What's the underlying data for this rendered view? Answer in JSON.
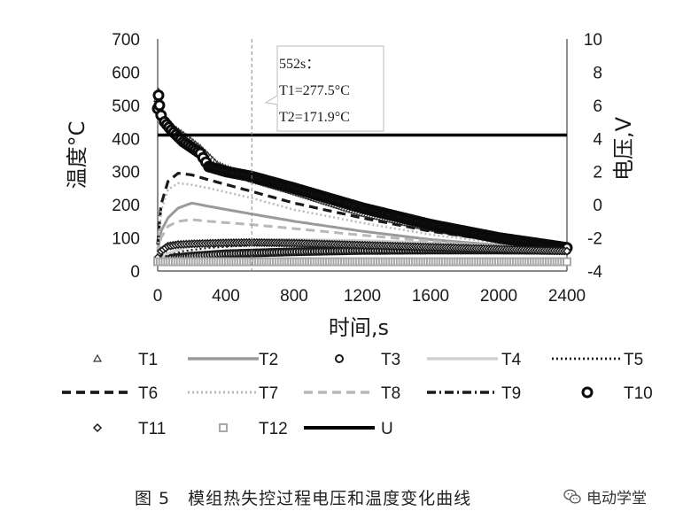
{
  "chart_data": {
    "type": "line",
    "title": "",
    "xlabel": "时间,s",
    "ylabel": "温度°C",
    "y2label": "电压,V",
    "xlim": [
      0,
      2400
    ],
    "ylim": [
      0,
      700
    ],
    "y2lim": [
      -4,
      10
    ],
    "xticks": [
      0,
      400,
      800,
      1200,
      1600,
      2000,
      2400
    ],
    "yticks": [
      0,
      100,
      200,
      300,
      400,
      500,
      600,
      700
    ],
    "y2ticks": [
      -4,
      -2,
      0,
      2,
      4,
      6,
      8,
      10
    ],
    "xtick_labels": [
      "0",
      "400",
      "800",
      "1200",
      "1600",
      "2000",
      "2400"
    ],
    "ytick_labels": [
      "0",
      "100",
      "200",
      "300",
      "400",
      "500",
      "600",
      "700"
    ],
    "y2tick_labels": [
      "-4",
      "-2",
      "0",
      "2",
      "4",
      "6",
      "8",
      "10"
    ],
    "annotation": {
      "x": 552,
      "line1": "552s：",
      "line2": "T1=277.5°C",
      "line3": "T2=171.9°C"
    },
    "legend_position": "bottom",
    "series": [
      {
        "name": "T1",
        "axis": "left",
        "style": "triangle-marker",
        "color": "#333333",
        "x": [
          0,
          5,
          10,
          20,
          40,
          80,
          150,
          250,
          350,
          552,
          800,
          1200,
          1600,
          2000,
          2400
        ],
        "values": [
          520,
          540,
          500,
          470,
          455,
          435,
          410,
          370,
          320,
          277.5,
          240,
          175,
          130,
          95,
          70
        ]
      },
      {
        "name": "T2",
        "axis": "left",
        "style": "solid-gray",
        "color": "#9a9a9a",
        "x": [
          0,
          20,
          60,
          120,
          200,
          300,
          552,
          800,
          1200,
          1600,
          2000,
          2400
        ],
        "values": [
          60,
          120,
          160,
          190,
          205,
          195,
          171.9,
          150,
          120,
          95,
          78,
          65
        ]
      },
      {
        "name": "T3",
        "axis": "left",
        "style": "circle-marker",
        "color": "#1a1a1a",
        "x": [
          0,
          10,
          20,
          50,
          100,
          200,
          400,
          800,
          1200,
          1600,
          2000,
          2400
        ],
        "values": [
          30,
          30,
          32,
          36,
          40,
          45,
          52,
          58,
          62,
          63,
          63,
          62
        ]
      },
      {
        "name": "T4",
        "axis": "left",
        "style": "solid-light",
        "color": "#d0d0d0",
        "x": [
          0,
          50,
          150,
          300,
          552,
          800,
          1200,
          1600,
          2000,
          2400
        ],
        "values": [
          30,
          50,
          70,
          82,
          92,
          95,
          92,
          85,
          75,
          66
        ]
      },
      {
        "name": "T5",
        "axis": "left",
        "style": "dotted",
        "color": "#1a1a1a",
        "x": [
          0,
          50,
          150,
          300,
          552,
          800,
          1200,
          1600,
          2000,
          2400
        ],
        "values": [
          30,
          45,
          60,
          70,
          78,
          82,
          82,
          78,
          72,
          64
        ]
      },
      {
        "name": "T6",
        "axis": "left",
        "style": "dashed",
        "color": "#1a1a1a",
        "x": [
          0,
          20,
          60,
          120,
          200,
          300,
          552,
          800,
          1200,
          1600,
          2000,
          2400
        ],
        "values": [
          80,
          200,
          270,
          295,
          290,
          275,
          240,
          205,
          160,
          120,
          90,
          72
        ]
      },
      {
        "name": "T7",
        "axis": "left",
        "style": "dotted-gray",
        "color": "#b8b8b8",
        "x": [
          0,
          20,
          60,
          120,
          200,
          300,
          552,
          800,
          1200,
          1600,
          2000,
          2400
        ],
        "values": [
          70,
          180,
          245,
          265,
          260,
          250,
          220,
          185,
          145,
          110,
          85,
          68
        ]
      },
      {
        "name": "T8",
        "axis": "left",
        "style": "dashed-gray",
        "color": "#b8b8b8",
        "x": [
          0,
          20,
          60,
          120,
          200,
          300,
          552,
          800,
          1200,
          1600,
          2000,
          2400
        ],
        "values": [
          50,
          100,
          135,
          150,
          155,
          150,
          140,
          128,
          108,
          90,
          75,
          64
        ]
      },
      {
        "name": "T9",
        "axis": "left",
        "style": "dash-dot",
        "color": "#1a1a1a",
        "x": [
          0,
          30,
          100,
          200,
          300,
          552,
          800,
          1200,
          1600,
          2000,
          2400
        ],
        "values": [
          30,
          55,
          75,
          85,
          88,
          88,
          86,
          80,
          73,
          66,
          60
        ]
      },
      {
        "name": "T10",
        "axis": "left",
        "style": "circle-marker-heavy",
        "color": "#0a0a0a",
        "x": [
          0,
          5,
          10,
          20,
          40,
          80,
          150,
          250,
          300,
          400,
          552,
          800,
          1200,
          1600,
          2000,
          2400
        ],
        "values": [
          490,
          530,
          500,
          470,
          450,
          425,
          390,
          355,
          315,
          300,
          285,
          250,
          190,
          140,
          100,
          70
        ]
      },
      {
        "name": "T11",
        "axis": "left",
        "style": "diamond-marker",
        "color": "#1a1a1a",
        "x": [
          0,
          20,
          60,
          120,
          200,
          400,
          552,
          800,
          1200,
          1600,
          2000,
          2400
        ],
        "values": [
          40,
          60,
          75,
          80,
          82,
          85,
          86,
          84,
          78,
          72,
          66,
          60
        ]
      },
      {
        "name": "T12",
        "axis": "left",
        "style": "square-marker-gray",
        "color": "#a8a8a8",
        "x": [
          0,
          400,
          800,
          1200,
          1600,
          2000,
          2400
        ],
        "values": [
          28,
          28,
          28,
          28,
          28,
          28,
          28
        ]
      },
      {
        "name": "U",
        "axis": "right",
        "style": "solid-thick",
        "color": "#000000",
        "x": [
          0,
          5,
          10,
          2400
        ],
        "values": [
          4.2,
          4.2,
          4.2,
          4.2
        ]
      }
    ]
  },
  "caption": {
    "text": "图 5　模组热失控过程电压和温度变化曲线",
    "brand": "电动学堂",
    "brand_icon": "wechat-icon"
  }
}
